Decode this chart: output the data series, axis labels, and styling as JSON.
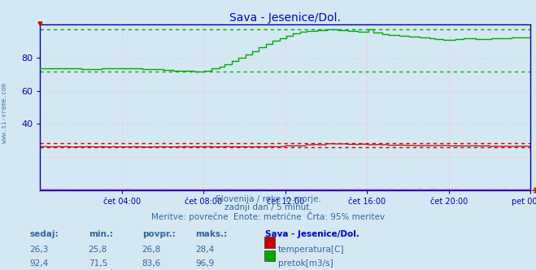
{
  "title": "Sava - Jesenice/Dol.",
  "title_color": "#0000cc",
  "bg_color": "#d4e8f4",
  "plot_bg_color": "#d4e8f4",
  "x_tick_labels": [
    "čet 04:00",
    "čet 08:00",
    "čet 12:00",
    "čet 16:00",
    "čet 20:00",
    "pet 00:00"
  ],
  "x_tick_positions": [
    4,
    8,
    12,
    16,
    20,
    24
  ],
  "ylim": [
    0,
    100
  ],
  "yticks": [
    40,
    60,
    80
  ],
  "grid_color": "#ffbbbb",
  "axis_color": "#0000aa",
  "tick_color": "#0000aa",
  "temp_color": "#cc0000",
  "flow_color": "#00aa00",
  "height_color": "#8800cc",
  "temp_max_dashed": 28.4,
  "temp_min_dashed": 25.8,
  "flow_max_dashed": 96.9,
  "flow_min_dashed": 71.5,
  "subtitle1": "Slovenija / reke in morje.",
  "subtitle2": "zadnji dan / 5 minut.",
  "subtitle3": "Meritve: povrečne  Enote: metrične  Črta: 95% meritev",
  "subtitle_color": "#336699",
  "legend_title": "Sava - Jesenice/Dol.",
  "legend_title_color": "#0000cc",
  "temp_label": "temperatura[C]",
  "flow_label": "pretok[m3/s]",
  "temp_legend_color": "#cc0000",
  "flow_legend_color": "#00aa00",
  "table_headers": [
    "sedaj:",
    "min.:",
    "povpr.:",
    "maks.:"
  ],
  "table_row1": [
    "26,3",
    "25,8",
    "26,8",
    "28,4"
  ],
  "table_row2": [
    "92,4",
    "71,5",
    "83,6",
    "96,9"
  ],
  "table_color": "#336699",
  "side_text": "www.si-vreme.com",
  "side_color": "#336699"
}
